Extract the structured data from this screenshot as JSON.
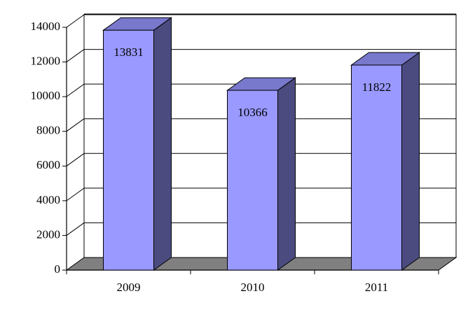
{
  "chart_data": {
    "type": "bar3d",
    "categories": [
      "2009",
      "2010",
      "2011"
    ],
    "values": [
      13831,
      10366,
      11822
    ],
    "color": "#9999ff",
    "ylim": [
      0,
      14000
    ],
    "yticks": [
      0,
      2000,
      4000,
      6000,
      8000,
      10000,
      12000,
      14000
    ],
    "grid": true
  }
}
